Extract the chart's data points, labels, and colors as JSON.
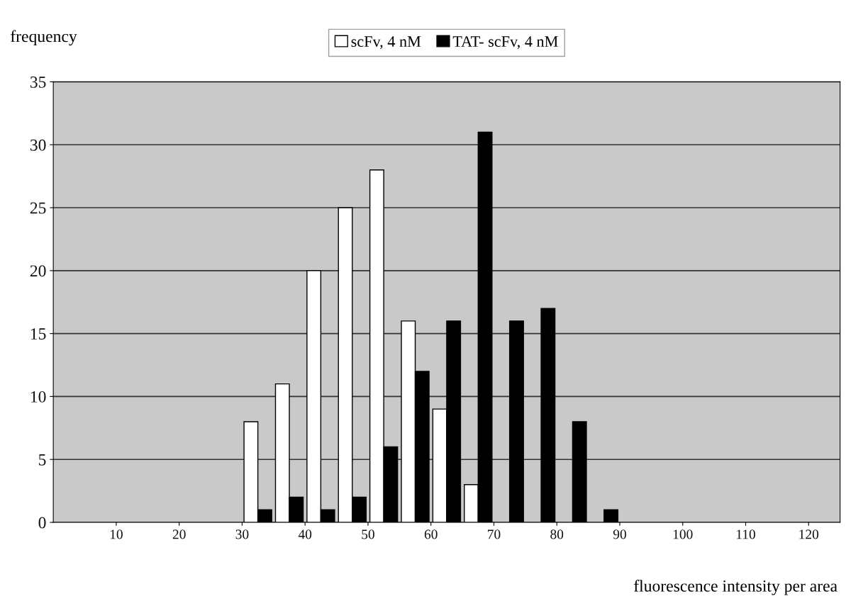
{
  "chart_data": {
    "type": "bar",
    "xlabel": "fluorescence intensity per area",
    "ylabel": "frequency",
    "xlim": [
      0,
      125
    ],
    "xticks": [
      10,
      20,
      30,
      40,
      50,
      60,
      70,
      80,
      90,
      100,
      110,
      120
    ],
    "ylim": [
      0,
      35
    ],
    "yticks": [
      0,
      5,
      10,
      15,
      20,
      25,
      30,
      35
    ],
    "grid": "y",
    "legend": "top",
    "series": [
      {
        "name": "scFv, 4 nM",
        "color": "#ffffff",
        "x": [
          32.5,
          37.5,
          42.5,
          47.5,
          52.5,
          57.5,
          62.5,
          67.5
        ],
        "values": [
          8,
          11,
          20,
          25,
          28,
          16,
          9,
          3
        ]
      },
      {
        "name": "TAT- scFv, 4 nM",
        "color": "#000000",
        "x": [
          32.5,
          37.5,
          42.5,
          47.5,
          52.5,
          57.5,
          62.5,
          67.5,
          72.5,
          77.5,
          82.5,
          87.5
        ],
        "values": [
          1,
          2,
          1,
          2,
          6,
          12,
          16,
          31,
          16,
          17,
          8,
          1
        ]
      }
    ]
  }
}
